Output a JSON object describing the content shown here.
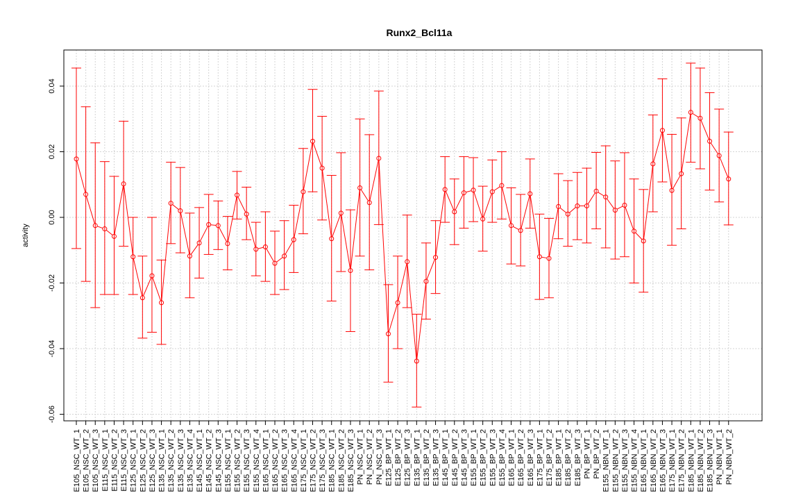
{
  "chart_data": {
    "type": "line",
    "title": "Runx2_Bcl11a",
    "xlabel": "",
    "ylabel": "activity",
    "ylim": [
      -0.062,
      0.051
    ],
    "yticks": [
      -0.06,
      -0.04,
      -0.02,
      0.0,
      0.02,
      0.04
    ],
    "ytick_labels": [
      "-0.06",
      "-0.04",
      "-0.02",
      "0.00",
      "0.02",
      "0.04"
    ],
    "grid": true,
    "color": "#ff0000",
    "categories": [
      "E105_NSC_WT_1",
      "E105_NSC_WT_2",
      "E105_NSC_WT_3",
      "E115_NSC_WT_1",
      "E115_NSC_WT_2",
      "E115_NSC_WT_3",
      "E125_NSC_WT_1",
      "E125_NSC_WT_2",
      "E125_NSC_WT_3",
      "E135_NSC_WT_1",
      "E135_NSC_WT_2",
      "E135_NSC_WT_3",
      "E135_NSC_WT_4",
      "E145_NSC_WT_1",
      "E145_NSC_WT_2",
      "E145_NSC_WT_3",
      "E155_NSC_WT_1",
      "E155_NSC_WT_2",
      "E155_NSC_WT_3",
      "E155_NSC_WT_4",
      "E165_NSC_WT_1",
      "E165_NSC_WT_2",
      "E165_NSC_WT_3",
      "E165_NSC_WT_4",
      "E175_NSC_WT_1",
      "E175_NSC_WT_2",
      "E175_NSC_WT_3",
      "E185_NSC_WT_1",
      "E185_NSC_WT_2",
      "E185_NSC_WT_3",
      "PN_NSC_WT_1",
      "PN_NSC_WT_2",
      "PN_NSC_WT_3",
      "E125_BP_WT_1",
      "E125_BP_WT_2",
      "E125_BP_WT_3",
      "E135_BP_WT_1",
      "E135_BP_WT_2",
      "E135_BP_WT_3",
      "E145_BP_WT_1",
      "E145_BP_WT_2",
      "E145_BP_WT_3",
      "E155_BP_WT_1",
      "E155_BP_WT_2",
      "E155_BP_WT_3",
      "E155_BP_WT_4",
      "E165_BP_WT_1",
      "E165_BP_WT_2",
      "E165_BP_WT_3",
      "E175_BP_WT_1",
      "E175_BP_WT_2",
      "E185_BP_WT_1",
      "E185_BP_WT_2",
      "E185_BP_WT_3",
      "PN_BP_WT_1",
      "PN_BP_WT_2",
      "E155_NBN_WT_1",
      "E155_NBN_WT_2",
      "E155_NBN_WT_3",
      "E155_NBN_WT_4",
      "E165_NBN_WT_1",
      "E165_NBN_WT_2",
      "E165_NBN_WT_3",
      "E175_NBN_WT_1",
      "E175_NBN_WT_2",
      "E185_NBN_WT_1",
      "E185_NBN_WT_2",
      "E185_NBN_WT_3",
      "PN_NBN_WT_1",
      "PN_NBN_WT_2"
    ],
    "values": [
      0.0178,
      0.007,
      -0.0025,
      -0.0035,
      -0.0058,
      0.0102,
      -0.012,
      -0.0245,
      -0.0178,
      -0.026,
      0.0043,
      0.002,
      -0.0118,
      -0.0078,
      -0.0022,
      -0.0025,
      -0.008,
      0.0068,
      0.001,
      -0.0097,
      -0.009,
      -0.014,
      -0.0118,
      -0.0068,
      0.0078,
      0.0232,
      0.015,
      -0.0065,
      0.0013,
      -0.0162,
      0.009,
      0.0045,
      0.018,
      -0.0355,
      -0.026,
      -0.0135,
      -0.0438,
      -0.0195,
      -0.0122,
      0.0085,
      0.0017,
      0.0075,
      0.0083,
      -0.0005,
      0.0078,
      0.0097,
      -0.0025,
      -0.004,
      0.0072,
      -0.012,
      -0.0125,
      0.0033,
      0.001,
      0.0035,
      0.0035,
      0.008,
      0.0062,
      0.0022,
      0.0037,
      -0.0042,
      -0.0072,
      0.0163,
      0.0265,
      0.0082,
      0.0133,
      0.032,
      0.0302,
      0.0232,
      0.0188,
      0.0117
    ],
    "upper": [
      0.0455,
      0.0337,
      0.0227,
      0.017,
      0.0125,
      0.0293,
      0.0,
      -0.0118,
      0.0,
      -0.013,
      0.0168,
      0.0152,
      0.0013,
      0.003,
      0.007,
      0.005,
      0.0003,
      0.014,
      0.0092,
      -0.0015,
      0.0017,
      -0.0042,
      -0.001,
      0.0037,
      0.021,
      0.039,
      0.0308,
      0.0128,
      0.0197,
      0.0023,
      0.03,
      0.0252,
      0.0385,
      -0.0205,
      -0.0118,
      0.0007,
      -0.0295,
      -0.0078,
      -0.001,
      0.0185,
      0.0117,
      0.0185,
      0.0182,
      0.0095,
      0.0175,
      0.02,
      0.009,
      0.007,
      0.0178,
      0.001,
      -0.0003,
      0.0133,
      0.0112,
      0.0137,
      0.015,
      0.0198,
      0.0218,
      0.0172,
      0.0197,
      0.0117,
      0.0085,
      0.0312,
      0.0422,
      0.0253,
      0.0303,
      0.047,
      0.0455,
      0.038,
      0.033,
      0.026
    ],
    "lower": [
      -0.0095,
      -0.0195,
      -0.0275,
      -0.0235,
      -0.0235,
      -0.0088,
      -0.0235,
      -0.0368,
      -0.035,
      -0.0387,
      -0.008,
      -0.0108,
      -0.0245,
      -0.0185,
      -0.0113,
      -0.0098,
      -0.016,
      -0.0005,
      -0.0068,
      -0.0178,
      -0.0195,
      -0.0235,
      -0.022,
      -0.0168,
      -0.005,
      0.0078,
      -0.0008,
      -0.0255,
      -0.0165,
      -0.0348,
      -0.0118,
      -0.016,
      -0.0022,
      -0.0502,
      -0.04,
      -0.0275,
      -0.0578,
      -0.031,
      -0.0232,
      -0.0015,
      -0.0083,
      -0.0033,
      -0.0013,
      -0.0103,
      -0.0015,
      -0.0005,
      -0.0142,
      -0.0148,
      -0.0033,
      -0.025,
      -0.0245,
      -0.0065,
      -0.0088,
      -0.0068,
      -0.0078,
      -0.0035,
      -0.0093,
      -0.0127,
      -0.012,
      -0.02,
      -0.0228,
      0.0017,
      0.0108,
      -0.0085,
      -0.0035,
      0.0168,
      0.0148,
      0.0083,
      0.0047,
      -0.0023
    ]
  }
}
